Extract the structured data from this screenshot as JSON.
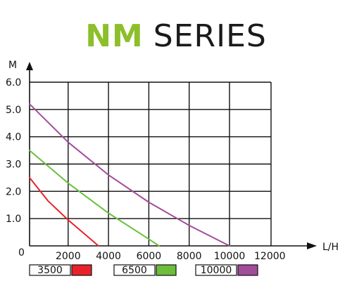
{
  "title": {
    "accent": "NM",
    "rest": "SERIES",
    "accent_color": "#8cbf2a"
  },
  "chart_data": {
    "type": "line",
    "title": "NM SERIES",
    "xlabel": "L/H",
    "ylabel": "M",
    "xlim": [
      0,
      12000
    ],
    "ylim": [
      0,
      6.0
    ],
    "xticks": [
      0,
      2000,
      4000,
      6000,
      8000,
      10000,
      12000
    ],
    "xtick_labels": [
      "0",
      "2000",
      "4000",
      "6000",
      "8000",
      "10000",
      "12000"
    ],
    "yticks": [
      0,
      1.0,
      2.0,
      3.0,
      4.0,
      5.0,
      6.0
    ],
    "ytick_labels": [
      "0",
      "1.0",
      "2.0",
      "3.0",
      "4.0",
      "5.0",
      "6.0"
    ],
    "grid": true,
    "legend_position": "bottom",
    "series": [
      {
        "name": "3500",
        "color": "#e8222b",
        "x": [
          0,
          1000,
          2000,
          3000,
          3500
        ],
        "y": [
          2.5,
          1.65,
          0.95,
          0.32,
          0
        ]
      },
      {
        "name": "6500",
        "color": "#6cbe3c",
        "x": [
          0,
          2000,
          4000,
          6000,
          6500
        ],
        "y": [
          3.5,
          2.3,
          1.2,
          0.25,
          0
        ]
      },
      {
        "name": "10000",
        "color": "#a24c9c",
        "x": [
          0,
          2000,
          4000,
          6000,
          8000,
          10000
        ],
        "y": [
          5.2,
          3.8,
          2.6,
          1.6,
          0.75,
          0
        ]
      }
    ]
  }
}
